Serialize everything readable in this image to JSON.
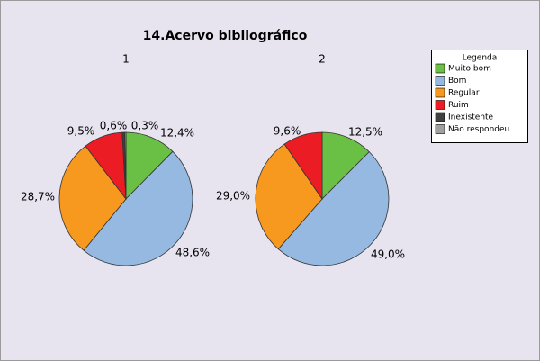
{
  "title": "14.Acervo bibliográfico",
  "legend": {
    "title": "Legenda",
    "items": [
      {
        "name": "Muito bom",
        "color": "#6abf45"
      },
      {
        "name": "Bom",
        "color": "#95b9e0"
      },
      {
        "name": "Regular",
        "color": "#f7991f"
      },
      {
        "name": "Ruim",
        "color": "#ec1c24"
      },
      {
        "name": "Inexistente",
        "color": "#404040"
      },
      {
        "name": "Não respondeu",
        "color": "#a0a0a0"
      }
    ]
  },
  "chart_data": [
    {
      "type": "pie",
      "title": "1",
      "categories": [
        "Muito bom",
        "Bom",
        "Regular",
        "Ruim",
        "Inexistente",
        "Não respondeu"
      ],
      "values": [
        12.4,
        48.6,
        28.7,
        9.5,
        0.6,
        0.3
      ],
      "value_labels": [
        "12,4%",
        "48,6%",
        "28,7%",
        "9,5%",
        "0,6%",
        "0,3%"
      ]
    },
    {
      "type": "pie",
      "title": "2",
      "categories": [
        "Muito bom",
        "Bom",
        "Regular",
        "Ruim"
      ],
      "values": [
        12.5,
        49.0,
        29.0,
        9.6
      ],
      "value_labels": [
        "12,5%",
        "49,0%",
        "29,0%",
        "9,6%"
      ]
    }
  ]
}
